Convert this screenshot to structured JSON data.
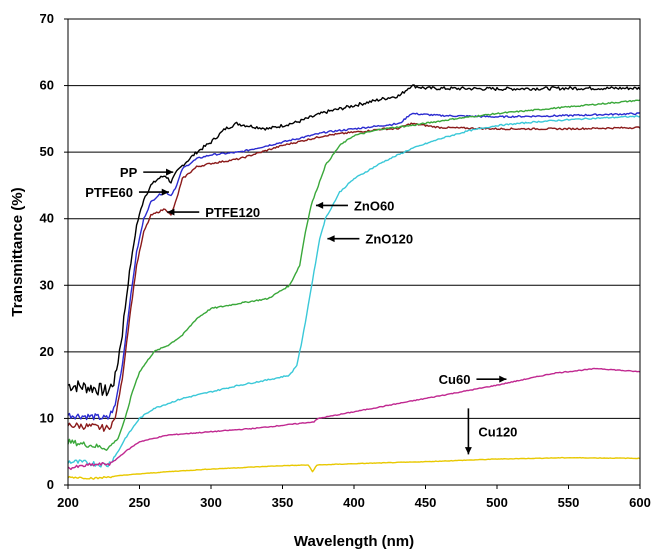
{
  "chart_data": {
    "type": "line",
    "title": "",
    "xlabel": "Wavelength (nm)",
    "ylabel": "Transmittance (%)",
    "xlim": [
      200,
      600
    ],
    "ylim": [
      0,
      70
    ],
    "x_ticks": [
      "200",
      "250",
      "300",
      "350",
      "400",
      "450",
      "500",
      "550",
      "600"
    ],
    "y_ticks": [
      "0",
      "10",
      "20",
      "30",
      "40",
      "50",
      "60",
      "70"
    ],
    "grid": "horizontal",
    "legend": "none",
    "series": [
      {
        "name": "PP",
        "color": "#000000",
        "noise": 1.0,
        "points": [
          [
            200,
            15
          ],
          [
            210,
            14.8
          ],
          [
            220,
            14.5
          ],
          [
            228,
            14
          ],
          [
            233,
            16
          ],
          [
            238,
            23
          ],
          [
            243,
            32
          ],
          [
            248,
            39
          ],
          [
            253,
            43
          ],
          [
            258,
            45
          ],
          [
            263,
            46
          ],
          [
            268,
            46.5
          ],
          [
            272,
            45.5
          ],
          [
            276,
            47
          ],
          [
            280,
            48
          ],
          [
            290,
            50
          ],
          [
            300,
            51.5
          ],
          [
            310,
            53.5
          ],
          [
            318,
            54.3
          ],
          [
            325,
            54
          ],
          [
            340,
            53.5
          ],
          [
            360,
            54.5
          ],
          [
            380,
            56
          ],
          [
            400,
            57
          ],
          [
            420,
            58
          ],
          [
            432,
            58.5
          ],
          [
            440,
            60
          ],
          [
            450,
            59.6
          ],
          [
            500,
            59.5
          ],
          [
            550,
            59.6
          ],
          [
            600,
            59.6
          ]
        ]
      },
      {
        "name": "PTFE60",
        "color": "#2b2bd0",
        "noise": 0.5,
        "points": [
          [
            200,
            10.5
          ],
          [
            215,
            10.3
          ],
          [
            228,
            10
          ],
          [
            233,
            12
          ],
          [
            238,
            18
          ],
          [
            243,
            27
          ],
          [
            248,
            35
          ],
          [
            253,
            40
          ],
          [
            258,
            42.5
          ],
          [
            263,
            43.5
          ],
          [
            268,
            44
          ],
          [
            272,
            43.5
          ],
          [
            276,
            45
          ],
          [
            280,
            47.5
          ],
          [
            290,
            49
          ],
          [
            300,
            49.6
          ],
          [
            320,
            50
          ],
          [
            350,
            51.5
          ],
          [
            380,
            53
          ],
          [
            400,
            53.5
          ],
          [
            420,
            54
          ],
          [
            432,
            54.3
          ],
          [
            440,
            55.8
          ],
          [
            460,
            55.5
          ],
          [
            500,
            55.3
          ],
          [
            550,
            55.5
          ],
          [
            600,
            55.8
          ]
        ]
      },
      {
        "name": "PTFE120",
        "color": "#8b1a1a",
        "noise": 0.5,
        "points": [
          [
            200,
            9
          ],
          [
            215,
            8.8
          ],
          [
            228,
            8.5
          ],
          [
            233,
            10
          ],
          [
            238,
            16
          ],
          [
            243,
            25
          ],
          [
            248,
            33
          ],
          [
            253,
            38
          ],
          [
            258,
            40.5
          ],
          [
            263,
            41
          ],
          [
            268,
            41.5
          ],
          [
            272,
            40.5
          ],
          [
            276,
            43
          ],
          [
            280,
            46
          ],
          [
            290,
            47.8
          ],
          [
            300,
            48.3
          ],
          [
            320,
            49
          ],
          [
            350,
            51
          ],
          [
            380,
            52.5
          ],
          [
            400,
            53
          ],
          [
            410,
            53.2
          ],
          [
            420,
            53.5
          ],
          [
            430,
            53.5
          ],
          [
            440,
            54.3
          ],
          [
            460,
            53.7
          ],
          [
            500,
            53.5
          ],
          [
            550,
            53.5
          ],
          [
            600,
            53.7
          ]
        ]
      },
      {
        "name": "ZnO60",
        "color": "#3aa83a",
        "noise": 0.4,
        "points": [
          [
            200,
            6.5
          ],
          [
            215,
            6
          ],
          [
            228,
            5.5
          ],
          [
            235,
            7
          ],
          [
            240,
            10
          ],
          [
            245,
            14
          ],
          [
            250,
            17
          ],
          [
            260,
            20
          ],
          [
            270,
            21
          ],
          [
            280,
            22.5
          ],
          [
            290,
            25
          ],
          [
            300,
            26.5
          ],
          [
            320,
            27.3
          ],
          [
            340,
            28
          ],
          [
            355,
            30
          ],
          [
            362,
            33
          ],
          [
            366,
            38
          ],
          [
            370,
            42
          ],
          [
            375,
            45
          ],
          [
            380,
            48
          ],
          [
            390,
            51
          ],
          [
            400,
            52.5
          ],
          [
            420,
            53.5
          ],
          [
            440,
            54
          ],
          [
            470,
            55
          ],
          [
            500,
            55.8
          ],
          [
            550,
            56.8
          ],
          [
            600,
            57.8
          ]
        ]
      },
      {
        "name": "ZnO120",
        "color": "#3ac8d8",
        "noise": 0.4,
        "points": [
          [
            200,
            3.5
          ],
          [
            215,
            3.3
          ],
          [
            228,
            3
          ],
          [
            235,
            5
          ],
          [
            240,
            7
          ],
          [
            250,
            10
          ],
          [
            260,
            11.5
          ],
          [
            280,
            13
          ],
          [
            300,
            14
          ],
          [
            320,
            15
          ],
          [
            340,
            15.8
          ],
          [
            355,
            16.5
          ],
          [
            360,
            18
          ],
          [
            364,
            22
          ],
          [
            368,
            27
          ],
          [
            372,
            32
          ],
          [
            376,
            37
          ],
          [
            380,
            40
          ],
          [
            385,
            42
          ],
          [
            390,
            44
          ],
          [
            400,
            46
          ],
          [
            420,
            48.5
          ],
          [
            440,
            50.5
          ],
          [
            460,
            52
          ],
          [
            480,
            53.2
          ],
          [
            500,
            54
          ],
          [
            530,
            54.6
          ],
          [
            560,
            55
          ],
          [
            600,
            55.4
          ]
        ]
      },
      {
        "name": "Cu60",
        "color": "#c02890",
        "noise": 0.25,
        "points": [
          [
            200,
            2.5
          ],
          [
            215,
            3
          ],
          [
            230,
            3.2
          ],
          [
            240,
            5
          ],
          [
            250,
            6.5
          ],
          [
            270,
            7.5
          ],
          [
            300,
            8
          ],
          [
            330,
            8.5
          ],
          [
            360,
            9.2
          ],
          [
            372,
            9.5
          ],
          [
            375,
            10
          ],
          [
            400,
            11
          ],
          [
            450,
            13
          ],
          [
            500,
            15
          ],
          [
            540,
            16.8
          ],
          [
            570,
            17.5
          ],
          [
            600,
            17
          ]
        ]
      },
      {
        "name": "Cu120",
        "color": "#e8c800",
        "noise": 0.15,
        "points": [
          [
            200,
            1.2
          ],
          [
            220,
            1
          ],
          [
            240,
            1.5
          ],
          [
            270,
            2
          ],
          [
            300,
            2.4
          ],
          [
            350,
            2.9
          ],
          [
            368,
            3
          ],
          [
            371,
            2
          ],
          [
            374,
            3
          ],
          [
            400,
            3.2
          ],
          [
            450,
            3.5
          ],
          [
            500,
            3.9
          ],
          [
            550,
            4.1
          ],
          [
            600,
            4
          ]
        ]
      }
    ],
    "annotations": [
      {
        "text": "PP",
        "target": [
          275,
          47
        ],
        "arrow": "right"
      },
      {
        "text": "PTFE60",
        "target": [
          272,
          44
        ],
        "arrow": "right"
      },
      {
        "text": "PTFE120",
        "target": [
          268,
          41
        ],
        "arrow": "left"
      },
      {
        "text": "ZnO60",
        "target": [
          372,
          42
        ],
        "arrow": "left"
      },
      {
        "text": "ZnO120",
        "target": [
          380,
          37
        ],
        "arrow": "left"
      },
      {
        "text": "Cu60",
        "target": [
          508,
          15.9
        ],
        "arrow": "right"
      },
      {
        "text": "Cu120",
        "target": [
          480,
          4
        ],
        "arrow": "down"
      }
    ]
  }
}
